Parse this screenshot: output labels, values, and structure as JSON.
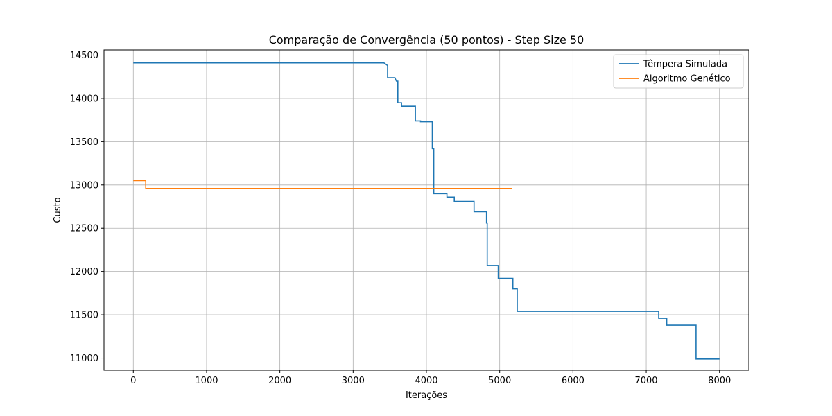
{
  "chart_data": {
    "type": "line",
    "step": true,
    "title": "Comparação de Convergência (50 pontos) - Step Size 50",
    "xlabel": "Iterações",
    "ylabel": "Custo",
    "xlim": [
      -400,
      8400
    ],
    "ylim": [
      10860,
      14560
    ],
    "xticks": [
      0,
      1000,
      2000,
      3000,
      4000,
      5000,
      6000,
      7000,
      8000
    ],
    "yticks": [
      11000,
      11500,
      12000,
      12500,
      13000,
      13500,
      14000,
      14500
    ],
    "grid": true,
    "legend_position": "top-right",
    "series": [
      {
        "name": "Têmpera Simulada",
        "color": "#1f77b4",
        "points": [
          [
            0,
            14410
          ],
          [
            3420,
            14410
          ],
          [
            3470,
            14380
          ],
          [
            3470,
            14240
          ],
          [
            3570,
            14240
          ],
          [
            3590,
            14200
          ],
          [
            3610,
            14200
          ],
          [
            3610,
            13950
          ],
          [
            3660,
            13950
          ],
          [
            3660,
            13910
          ],
          [
            3850,
            13910
          ],
          [
            3850,
            13740
          ],
          [
            3920,
            13740
          ],
          [
            3920,
            13730
          ],
          [
            4080,
            13730
          ],
          [
            4080,
            13420
          ],
          [
            4100,
            13420
          ],
          [
            4100,
            12900
          ],
          [
            4280,
            12900
          ],
          [
            4280,
            12860
          ],
          [
            4380,
            12860
          ],
          [
            4380,
            12810
          ],
          [
            4650,
            12810
          ],
          [
            4650,
            12690
          ],
          [
            4820,
            12690
          ],
          [
            4820,
            12560
          ],
          [
            4830,
            12560
          ],
          [
            4830,
            12070
          ],
          [
            4980,
            12070
          ],
          [
            4980,
            11920
          ],
          [
            5180,
            11920
          ],
          [
            5180,
            11800
          ],
          [
            5240,
            11800
          ],
          [
            5240,
            11540
          ],
          [
            7170,
            11540
          ],
          [
            7170,
            11460
          ],
          [
            7280,
            11460
          ],
          [
            7280,
            11380
          ],
          [
            7680,
            11380
          ],
          [
            7680,
            10990
          ],
          [
            8000,
            10990
          ]
        ]
      },
      {
        "name": "Algoritmo Genético",
        "color": "#ff7f0e",
        "points": [
          [
            0,
            13050
          ],
          [
            170,
            13050
          ],
          [
            170,
            12960
          ],
          [
            5170,
            12960
          ]
        ]
      }
    ]
  }
}
